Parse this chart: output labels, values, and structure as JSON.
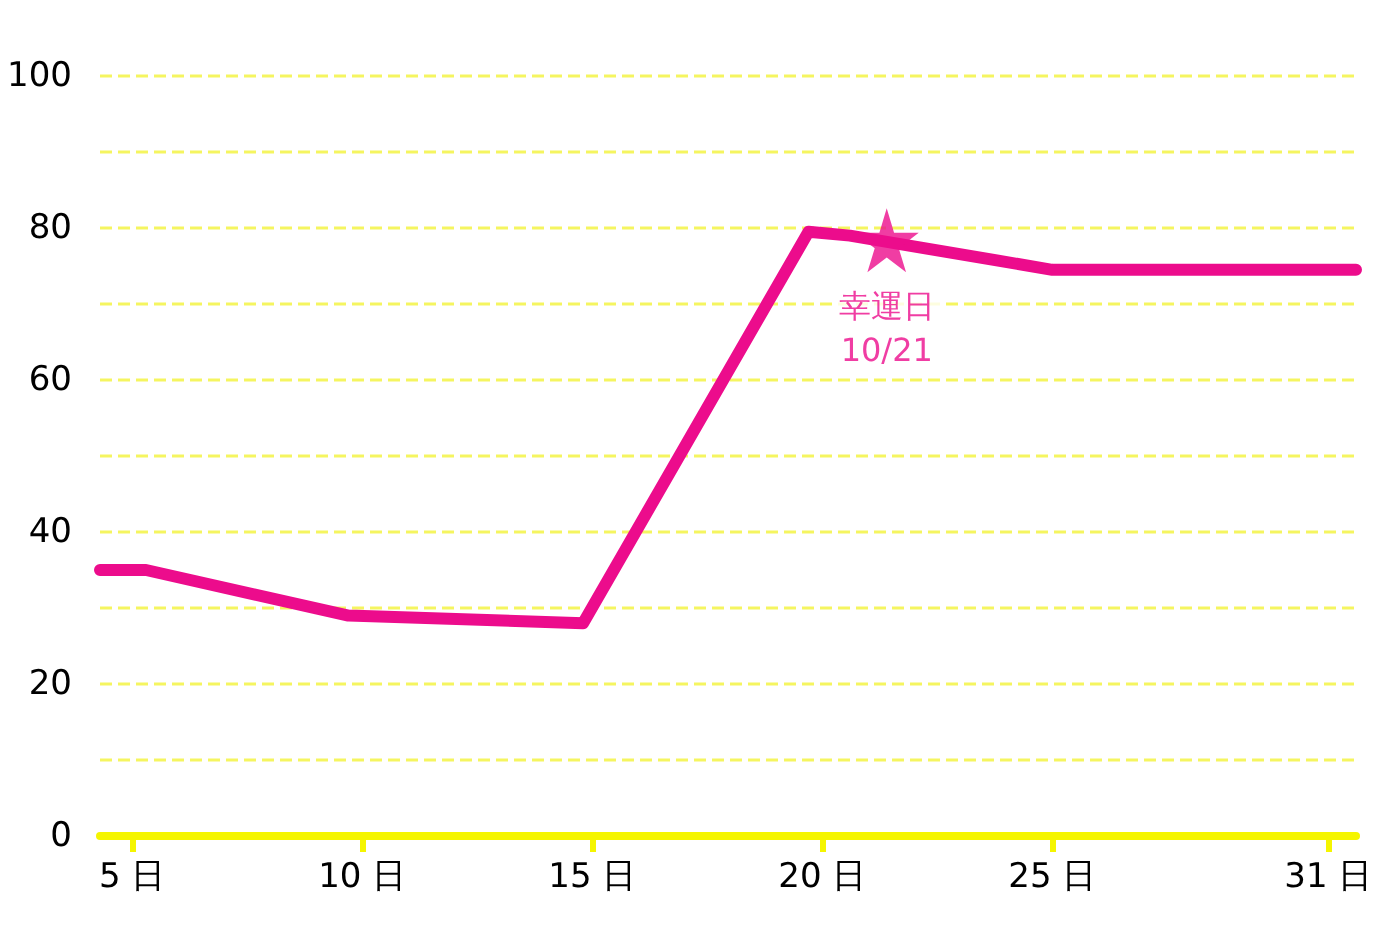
{
  "chart_data": {
    "type": "line",
    "x": [
      4.3,
      5.3,
      9.7,
      14.8,
      19.7,
      20.6,
      25.0,
      31.6
    ],
    "series": [
      {
        "color": "#ec0c8c",
        "values": [
          35,
          35,
          29,
          28,
          79.5,
          79,
          74.5,
          74.5
        ]
      },
      {
        "type": "scatter",
        "color": "#ec0c8c",
        "marker": "star",
        "x": [
          21.4
        ],
        "values": [
          78.4
        ]
      }
    ],
    "xlim": [
      4.3,
      31.6
    ],
    "xticks": [
      {
        "value": 5,
        "label": "5 日"
      },
      {
        "value": 10,
        "label": "10 日"
      },
      {
        "value": 15,
        "label": "15 日"
      },
      {
        "value": 20,
        "label": "20 日"
      },
      {
        "value": 25,
        "label": "25 日"
      },
      {
        "value": 31,
        "label": "31 日"
      }
    ],
    "ylim": [
      0,
      100
    ],
    "yticks": [
      0,
      {
        "value": 10,
        "label": null
      },
      20,
      {
        "value": 30,
        "label": null
      },
      40,
      {
        "value": 50,
        "label": null
      },
      60,
      {
        "value": 70,
        "label": null
      },
      80,
      {
        "value": 90,
        "label": null
      },
      100
    ],
    "grid": "y",
    "marker": "none",
    "line_style": "solid",
    "annotations": [
      {
        "text": "幸運日\n10/21",
        "x": 21.4,
        "y": 78.4
      }
    ]
  }
}
